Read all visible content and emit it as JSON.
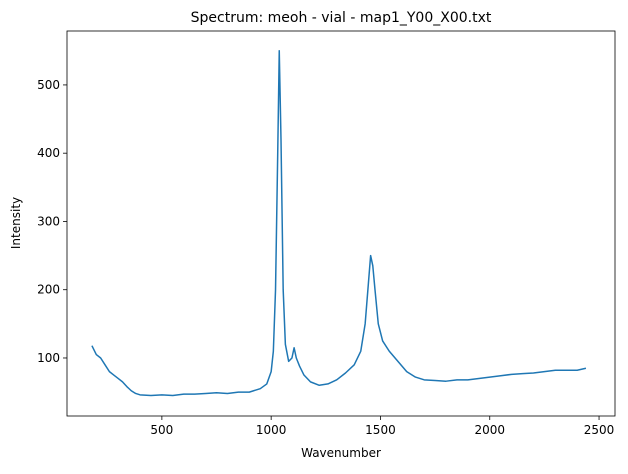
{
  "chart_data": {
    "type": "line",
    "title": "Spectrum: meoh - vial - map1_Y00_X00.txt",
    "x_label": "Wavenumber",
    "y_label": "Intensity",
    "x": [
      180,
      200,
      220,
      240,
      260,
      280,
      300,
      320,
      340,
      360,
      380,
      400,
      450,
      500,
      550,
      600,
      650,
      700,
      750,
      800,
      850,
      900,
      950,
      980,
      1000,
      1010,
      1020,
      1030,
      1037,
      1045,
      1055,
      1065,
      1080,
      1095,
      1105,
      1115,
      1130,
      1150,
      1180,
      1220,
      1260,
      1300,
      1340,
      1380,
      1410,
      1430,
      1445,
      1455,
      1465,
      1475,
      1490,
      1510,
      1540,
      1580,
      1620,
      1660,
      1700,
      1750,
      1800,
      1850,
      1900,
      1950,
      2000,
      2050,
      2100,
      2150,
      2200,
      2250,
      2300,
      2350,
      2400,
      2440
    ],
    "series": [
      {
        "name": "Spectrum",
        "color": "#1f77b4",
        "values": [
          118,
          105,
          100,
          90,
          80,
          75,
          70,
          65,
          58,
          52,
          48,
          46,
          45,
          46,
          45,
          47,
          47,
          48,
          49,
          48,
          50,
          50,
          55,
          62,
          80,
          110,
          200,
          400,
          550,
          420,
          200,
          120,
          95,
          100,
          115,
          100,
          88,
          75,
          65,
          60,
          62,
          68,
          78,
          90,
          110,
          150,
          210,
          250,
          235,
          200,
          150,
          125,
          110,
          95,
          80,
          72,
          68,
          67,
          66,
          68,
          68,
          70,
          72,
          74,
          76,
          77,
          78,
          80,
          82,
          82,
          82,
          85
        ]
      }
    ],
    "xlim": [
      66,
      2573
    ],
    "ylim": [
      15,
      579
    ],
    "xticks": [
      500,
      1000,
      1500,
      2000,
      2500
    ],
    "yticks": [
      100,
      200,
      300,
      400,
      500
    ]
  }
}
